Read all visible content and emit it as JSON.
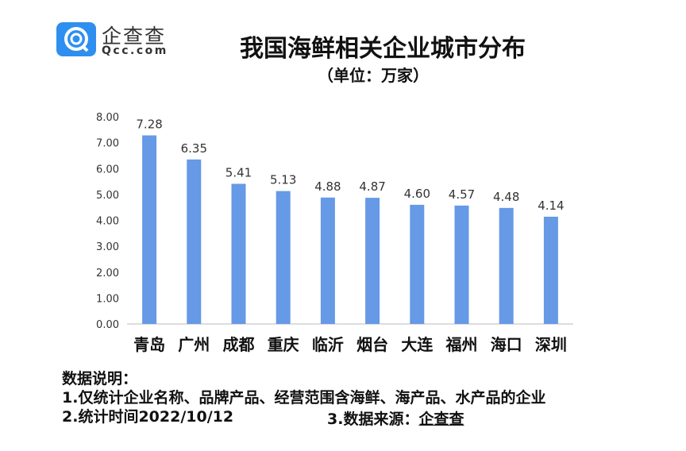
{
  "logo": {
    "name": "企查查",
    "domain": "Qcc.com"
  },
  "header": {
    "title": "我国海鲜相关企业城市分布",
    "subtitle": "（单位：万家）"
  },
  "chart_data": {
    "type": "bar",
    "title": "我国海鲜相关企业城市分布",
    "unit": "万家",
    "categories": [
      "青岛",
      "广州",
      "成都",
      "重庆",
      "临沂",
      "烟台",
      "大连",
      "福州",
      "海口",
      "深圳"
    ],
    "values": [
      7.28,
      6.35,
      5.41,
      5.13,
      4.88,
      4.87,
      4.6,
      4.57,
      4.48,
      4.14
    ],
    "data_labels": [
      "7.28",
      "6.35",
      "5.41",
      "5.13",
      "4.88",
      "4.87",
      "4.60",
      "4.57",
      "4.48",
      "4.14"
    ],
    "ylim": [
      0,
      8
    ],
    "yticks": [
      "0.00",
      "1.00",
      "2.00",
      "3.00",
      "4.00",
      "5.00",
      "6.00",
      "7.00",
      "8.00"
    ],
    "bar_color": "#6699e6",
    "grid": false
  },
  "notes": {
    "heading": "数据说明：",
    "line1": "1.仅统计企业名称、品牌产品、经营范围含海鲜、海产品、水产品的企业",
    "line2": "2.统计时间2022/10/12",
    "line3_prefix": "3.数据来源：",
    "line3_source": "企查查"
  }
}
